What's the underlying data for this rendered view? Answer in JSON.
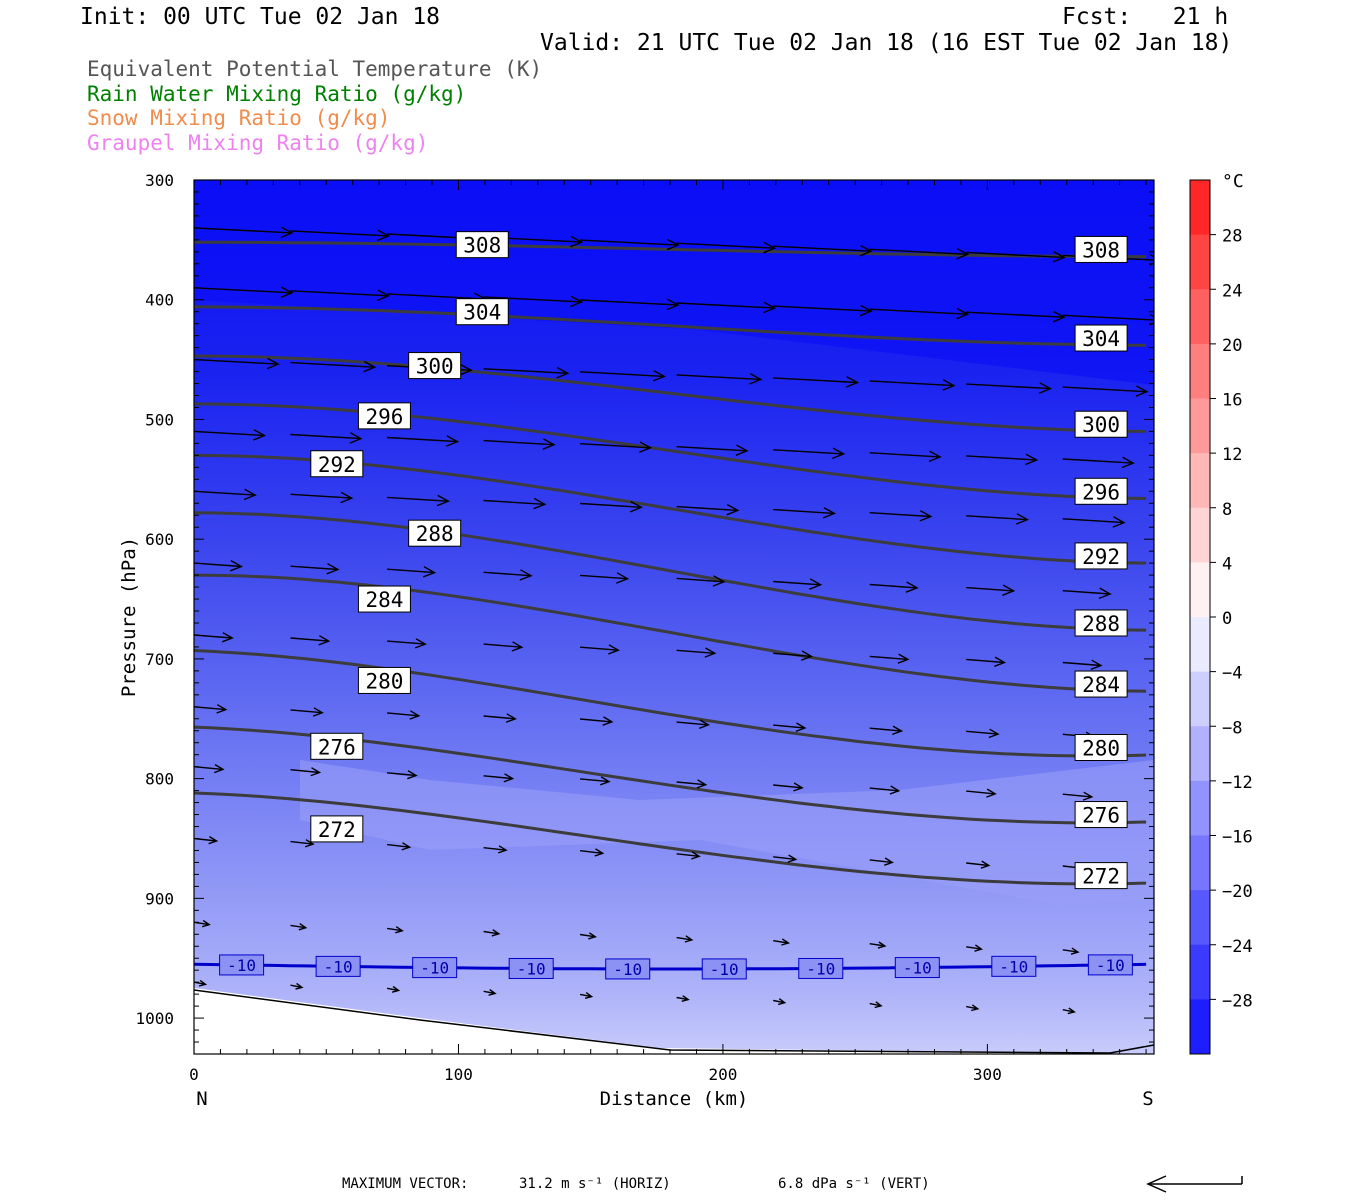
{
  "header": {
    "init": "Init: 00 UTC Tue 02 Jan 18",
    "fcst": "Fcst:   21 h",
    "valid": "Valid: 21 UTC Tue 02 Jan 18 (16 EST Tue 02 Jan 18)"
  },
  "legend": [
    {
      "label": "Equivalent Potential Temperature (K)",
      "color": "#555555"
    },
    {
      "label": "Rain Water Mixing Ratio (g/kg)",
      "color": "#008000"
    },
    {
      "label": "Snow Mixing Ratio (g/kg)",
      "color": "#f08c4c"
    },
    {
      "label": "Graupel Mixing Ratio (g/kg)",
      "color": "#ee82ee"
    }
  ],
  "chart_data": {
    "type": "cross-section",
    "xlabel": "Distance (km)",
    "ylabel": "Pressure (hPa)",
    "xlim": [
      0,
      363
    ],
    "ylim": [
      300,
      1030
    ],
    "x_ticks": [
      0,
      100,
      200,
      300
    ],
    "y_ticks": [
      300,
      400,
      500,
      600,
      700,
      800,
      900,
      1000
    ],
    "x_end_labels": {
      "left": "N",
      "right": "S"
    },
    "theta_e_contours": [
      {
        "level": 308,
        "p_left": 352,
        "p_right": 364,
        "label_left_x": 109,
        "label_left_p": 354
      },
      {
        "level": 304,
        "p_left": 406,
        "p_right": 438,
        "label_left_x": 109,
        "label_left_p": 410
      },
      {
        "level": 300,
        "p_left": 447,
        "p_right": 510,
        "label_left_x": 91,
        "label_left_p": 455
      },
      {
        "level": 296,
        "p_left": 487,
        "p_right": 566,
        "label_left_x": 72,
        "label_left_p": 497
      },
      {
        "level": 292,
        "p_left": 530,
        "p_right": 620,
        "label_left_x": 54,
        "label_left_p": 537
      },
      {
        "level": 288,
        "p_left": 578,
        "p_right": 676,
        "label_left_x": 91,
        "label_left_p": 595
      },
      {
        "level": 284,
        "p_left": 630,
        "p_right": 727,
        "label_left_x": 72,
        "label_left_p": 650
      },
      {
        "level": 280,
        "p_left": 693,
        "p_right": 780,
        "label_left_x": 72,
        "label_left_p": 718
      },
      {
        "level": 276,
        "p_left": 757,
        "p_right": 836,
        "label_left_x": 54,
        "label_left_p": 773
      },
      {
        "level": 272,
        "p_left": 812,
        "p_right": 887,
        "label_left_x": 54,
        "label_left_p": 842
      }
    ],
    "isotherm": {
      "value": -10,
      "label": "-10",
      "p": 955,
      "color": "#0000cc"
    },
    "colorbar": {
      "unit": "°C",
      "tick_labels": [
        "28",
        "24",
        "20",
        "16",
        "12",
        "8",
        "4",
        "0",
        "-4",
        "-8",
        "-12",
        "-16",
        "-20",
        "-24",
        "-28"
      ],
      "range": [
        -32,
        32
      ]
    },
    "max_vector": {
      "label": "MAXIMUM VECTOR:",
      "horiz": "31.2 m s⁻¹ (HORIZ)",
      "vert": "6.8 dPa s⁻¹ (VERT)"
    }
  }
}
